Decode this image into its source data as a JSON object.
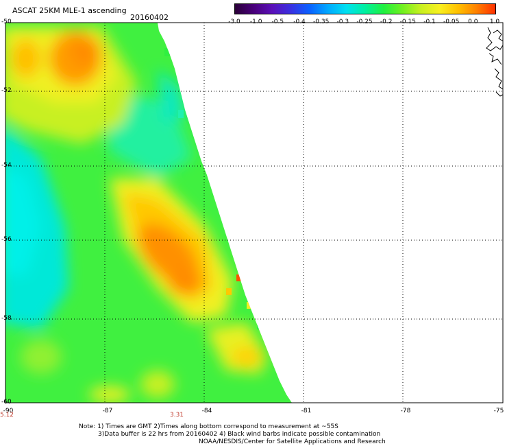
{
  "header": {
    "title": "ASCAT 25KM MLE-1 ascending",
    "date": "20160402"
  },
  "colorbar": {
    "tick_labels": [
      "-3.0",
      "-1.0",
      "-0.5",
      "-0.4",
      "-0.35",
      "-0.3",
      "-0.25",
      "-0.2",
      "-0.15",
      "-0.1",
      "-0.05",
      "0.0",
      "1.0"
    ],
    "colors": [
      "#2a0038",
      "#48007a",
      "#5a10b8",
      "#3a30e0",
      "#0a60ff",
      "#00a8ff",
      "#00e0f0",
      "#00f0a0",
      "#20f040",
      "#70f020",
      "#c8f020",
      "#f8f020",
      "#ffc000",
      "#ff8000",
      "#ff3000"
    ]
  },
  "map": {
    "lat_labels": [
      "-50",
      "-52",
      "-54",
      "-56",
      "-58",
      "-60"
    ],
    "lon_labels": [
      "-90",
      "-87",
      "-84",
      "-81",
      "-78",
      "-75"
    ],
    "time_labels": [
      "5.12",
      "3.31"
    ],
    "land_color": "#ffffff",
    "grid_style": "dotted",
    "data_palette": {
      "cyan": "#00e8d8",
      "aqua_green": "#20f0a0",
      "green": "#30f040",
      "yellow_green": "#a0f020",
      "yellow": "#f0f020",
      "orange_yellow": "#ffc800",
      "orange": "#ff9000"
    }
  },
  "footer": {
    "note_line1": "Note: 1) Times are GMT 2)Times along bottom correspond to measurement at ~55S",
    "note_line2": "3)Data buffer is 22 hrs from 20160402 4) Black wind barbs indicate possible contamination",
    "note_line3": "NOAA/NESDIS/Center for Satellite Applications and Research"
  }
}
